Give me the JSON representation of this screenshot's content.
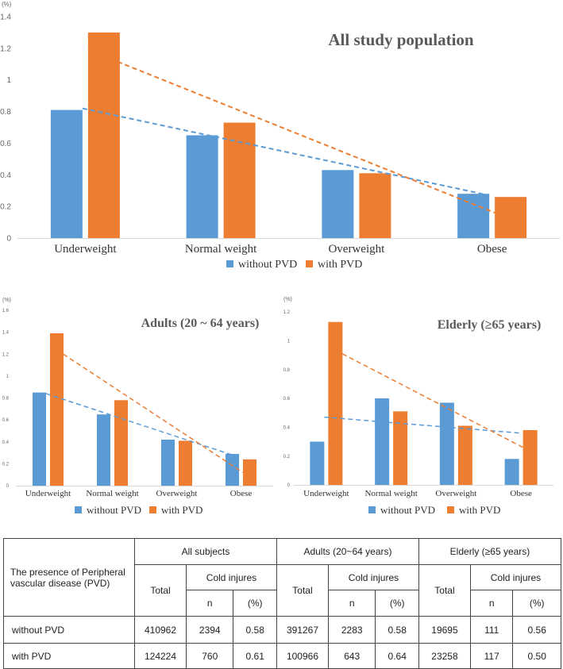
{
  "colors": {
    "without": "#5b9bd5",
    "with": "#ed7d31",
    "axis": "#d9d9d9"
  },
  "legend": {
    "without": "without PVD",
    "with": "with PVD"
  },
  "chart_data": [
    {
      "type": "bar",
      "title": "All study population",
      "unit": "(%)",
      "categories": [
        "Underweight",
        "Normal weight",
        "Overweight",
        "Obese"
      ],
      "ylim": [
        0,
        1.4
      ],
      "yticks": [
        "0",
        "0.2",
        "0.4",
        "0.6",
        "0.8",
        "1",
        "1.2",
        "1.4"
      ],
      "series": [
        {
          "name": "without PVD",
          "values": [
            0.81,
            0.65,
            0.43,
            0.28
          ],
          "trend": [
            0.82,
            0.27
          ]
        },
        {
          "name": "with PVD",
          "values": [
            1.3,
            0.73,
            0.41,
            0.26
          ],
          "trend": [
            1.19,
            0.16
          ]
        }
      ],
      "legend_position": "bottom"
    },
    {
      "type": "bar",
      "title": "Adults (20 ~ 64 years)",
      "unit": "(%)",
      "categories": [
        "Underweight",
        "Normal weight",
        "Overweight",
        "Obese"
      ],
      "ylim": [
        0,
        1.6
      ],
      "yticks": [
        "0",
        "0.2",
        "0.4",
        "0.6",
        "0.8",
        "1",
        "1.2",
        "1.4",
        "1.6"
      ],
      "series": [
        {
          "name": "without PVD",
          "values": [
            0.85,
            0.65,
            0.42,
            0.29
          ],
          "trend": [
            0.84,
            0.26
          ]
        },
        {
          "name": "with PVD",
          "values": [
            1.39,
            0.78,
            0.41,
            0.24
          ],
          "trend": [
            1.28,
            0.12
          ]
        }
      ],
      "legend_position": "bottom"
    },
    {
      "type": "bar",
      "title": "Elderly (≥65 years)",
      "unit": "(%)",
      "categories": [
        "Underweight",
        "Normal weight",
        "Overweight",
        "Obese"
      ],
      "ylim": [
        0,
        1.2
      ],
      "yticks": [
        "0",
        "0.2",
        "0.4",
        "0.6",
        "0.8",
        "1",
        "1.2"
      ],
      "series": [
        {
          "name": "without PVD",
          "values": [
            0.3,
            0.6,
            0.57,
            0.18
          ],
          "trend": [
            0.47,
            0.36
          ]
        },
        {
          "name": "with PVD",
          "values": [
            1.13,
            0.51,
            0.41,
            0.38
          ],
          "trend": [
            0.96,
            0.26
          ]
        }
      ],
      "legend_position": "bottom"
    }
  ],
  "table": {
    "row_header": "The presence of Peripheral vascular disease (PVD)",
    "groups": [
      "All subjects",
      "Adults (20~64 years)",
      "Elderly (≥65 years)"
    ],
    "total": "Total",
    "cold_injures": "Cold injures",
    "n": "n",
    "pct": "(%)",
    "rows": [
      {
        "label": "without PVD",
        "cells": [
          "410962",
          "2394",
          "0.58",
          "391267",
          "2283",
          "0.58",
          "19695",
          "111",
          "0.56"
        ]
      },
      {
        "label": "with PVD",
        "cells": [
          "124224",
          "760",
          "0.61",
          "100966",
          "643",
          "0.64",
          "23258",
          "117",
          "0.50"
        ]
      }
    ]
  }
}
